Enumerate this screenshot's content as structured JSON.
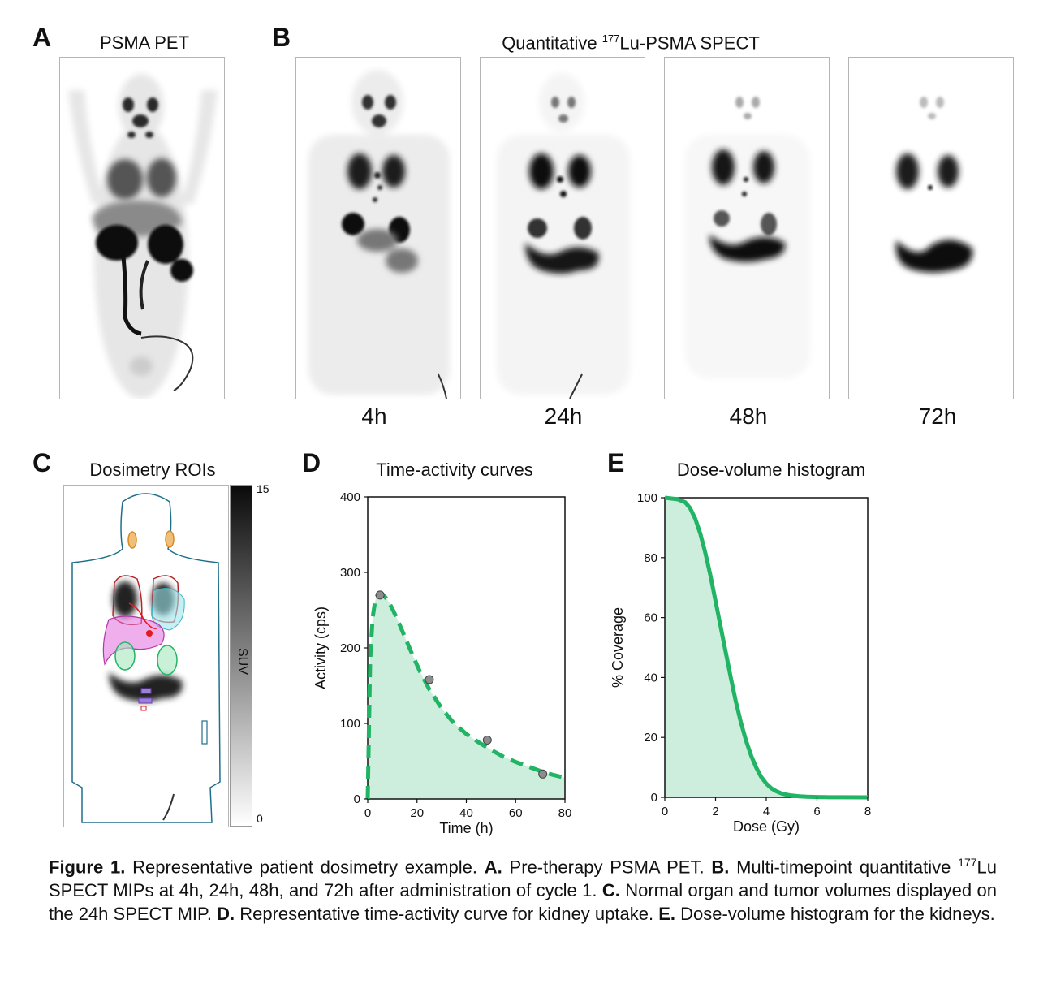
{
  "panels": {
    "A": {
      "letter": "A",
      "title": "PSMA PET"
    },
    "B": {
      "letter": "B",
      "title_pre": "Quantitative ",
      "title_sup": "177",
      "title_post": "Lu-PSMA SPECT",
      "timepoints": [
        "4h",
        "24h",
        "48h",
        "72h"
      ]
    },
    "C": {
      "letter": "C",
      "title": "Dosimetry ROIs",
      "colorbar": {
        "max": "15",
        "min": "0",
        "label": "SUV"
      }
    },
    "D": {
      "letter": "D",
      "title": "Time-activity curves"
    },
    "E": {
      "letter": "E",
      "title": "Dose-volume histogram"
    }
  },
  "chart_data": [
    {
      "type": "line",
      "title": "Time-activity curves",
      "xlabel": "Time (h)",
      "ylabel": "Activity (cps)",
      "xlim": [
        0,
        80
      ],
      "ylim": [
        0,
        400
      ],
      "xticks": [
        "0",
        "20",
        "40",
        "60",
        "80"
      ],
      "yticks": [
        "0",
        "100",
        "200",
        "300",
        "400"
      ],
      "points": {
        "x": [
          5,
          25,
          48.5,
          71
        ],
        "y": [
          270,
          158,
          78,
          33
        ]
      },
      "fit_curve": {
        "x": [
          0,
          1,
          2,
          3,
          4,
          5,
          6,
          8,
          10,
          12,
          15,
          18,
          21,
          25,
          30,
          35,
          40,
          45,
          50,
          55,
          60,
          65,
          70,
          75,
          80
        ],
        "y": [
          0,
          185,
          240,
          262,
          270,
          272,
          271,
          264,
          252,
          238,
          215,
          192,
          170,
          145,
          120,
          100,
          86,
          75,
          65,
          56,
          49,
          43,
          37,
          32,
          28
        ]
      },
      "line_color": "#22b465",
      "fill_color": "#cdeedd"
    },
    {
      "type": "area",
      "title": "Dose-volume histogram",
      "xlabel": "Dose (Gy)",
      "ylabel": "% Coverage",
      "xlim": [
        0,
        8
      ],
      "ylim": [
        0,
        100
      ],
      "xticks": [
        "0",
        "2",
        "4",
        "6",
        "8"
      ],
      "yticks": [
        "0",
        "20",
        "40",
        "60",
        "80",
        "100"
      ],
      "curve": {
        "x": [
          0,
          0.5,
          0.8,
          1.0,
          1.2,
          1.4,
          1.6,
          1.8,
          2.0,
          2.2,
          2.4,
          2.6,
          2.8,
          3.0,
          3.2,
          3.4,
          3.6,
          3.8,
          4.0,
          4.2,
          4.4,
          4.6,
          4.8,
          5.0,
          5.3,
          5.6,
          6.0,
          6.5,
          7.0,
          8.0
        ],
        "y": [
          100,
          99.5,
          98.5,
          96.5,
          93,
          88,
          81.5,
          74,
          65.5,
          57,
          48.5,
          40,
          32,
          25,
          19,
          14,
          10,
          6.8,
          4.6,
          3.0,
          2.0,
          1.3,
          0.9,
          0.6,
          0.35,
          0.2,
          0.1,
          0.05,
          0.02,
          0
        ]
      },
      "line_color": "#22b465",
      "fill_color": "#cdeedd"
    }
  ],
  "caption": {
    "fig": "Figure 1.",
    "t1": " Representative patient dosimetry example. ",
    "A": "A.",
    "t2": " Pre-therapy PSMA PET. ",
    "B": "B.",
    "t3": " Multi-timepoint quantitative ",
    "sup": "177",
    "t4": "Lu SPECT MIPs at 4h, 24h, 48h, and 72h after administration of cycle 1. ",
    "C": "C.",
    "t5": " Normal organ and tumor volumes displayed on the 24h SPECT MIP. ",
    "D": "D.",
    "t6": "  Representative time-activity curve for kidney uptake. ",
    "E": "E.",
    "t7": " Dose-volume histogram for the kidneys."
  }
}
